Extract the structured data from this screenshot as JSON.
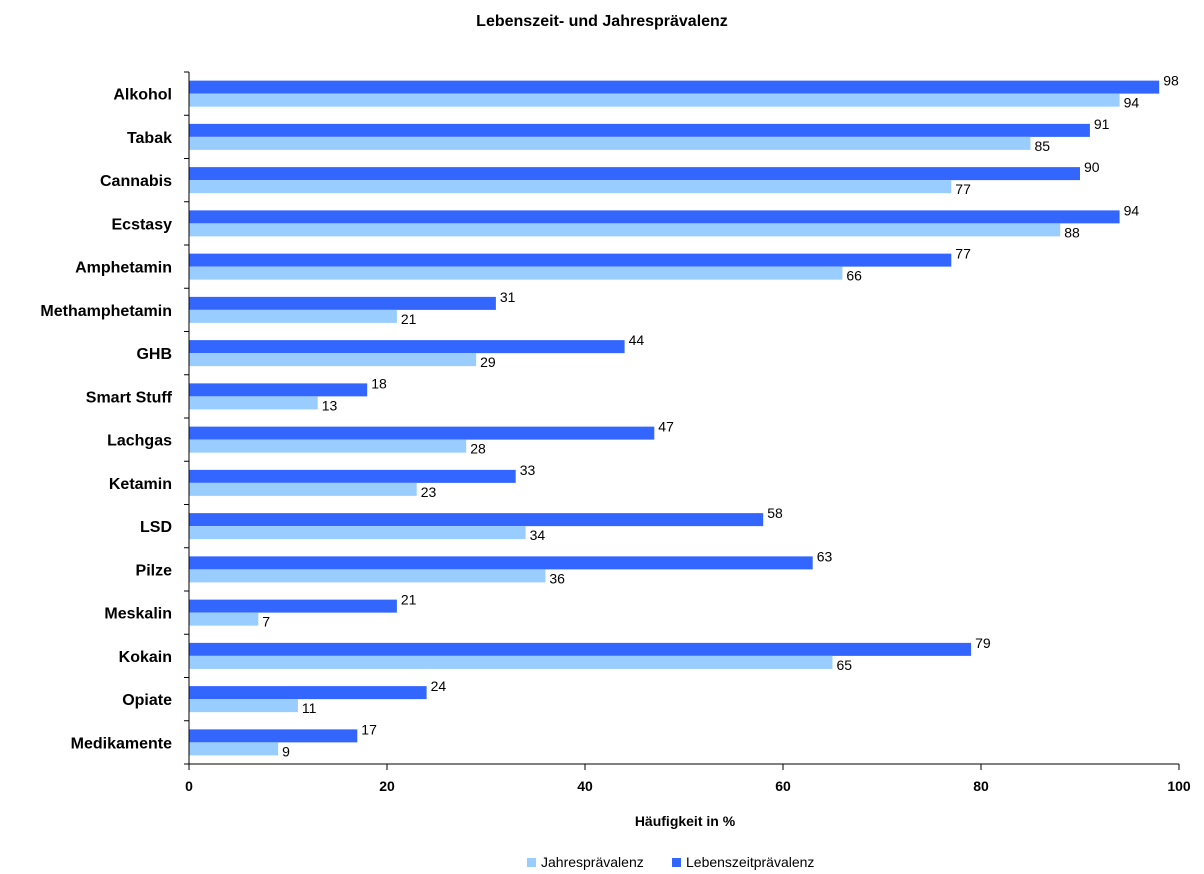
{
  "chart_data": {
    "type": "bar",
    "orientation": "horizontal",
    "title": "Lebenszeit- und Jahresprävalenz",
    "xlabel": "Häufigkeit in %",
    "ylabel": "",
    "xlim": [
      0,
      100
    ],
    "xticks": [
      "0",
      "20",
      "40",
      "60",
      "80",
      "100"
    ],
    "categories": [
      "Alkohol",
      "Tabak",
      "Cannabis",
      "Ecstasy",
      "Amphetamin",
      "Methamphetamin",
      "GHB",
      "Smart Stuff",
      "Lachgas",
      "Ketamin",
      "LSD",
      "Pilze",
      "Meskalin",
      "Kokain",
      "Opiate",
      "Medikamente"
    ],
    "series": [
      {
        "name": "Lebenszeitprävalenz",
        "color": "#3366ff",
        "values": [
          98,
          91,
          90,
          94,
          77,
          31,
          44,
          18,
          47,
          33,
          58,
          63,
          21,
          79,
          24,
          17
        ]
      },
      {
        "name": "Jahresprävalenz",
        "color": "#99ccff",
        "values": [
          94,
          85,
          77,
          88,
          66,
          21,
          29,
          13,
          28,
          23,
          34,
          36,
          7,
          65,
          11,
          9
        ]
      }
    ],
    "legend": {
      "position": "bottom",
      "order": [
        "Jahresprävalenz",
        "Lebenszeitprävalenz"
      ]
    },
    "grid": false
  }
}
